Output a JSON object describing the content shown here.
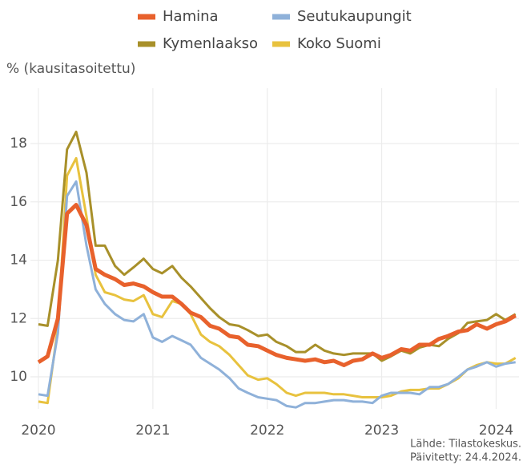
{
  "chart_data": {
    "type": "line",
    "y_label": "% (kausitasoitettu)",
    "source": "Lähde: Tilastokeskus.",
    "updated": "Päivitetty: 24.4.2024.",
    "x": [
      2020,
      2020.08,
      2020.17,
      2020.25,
      2020.33,
      2020.42,
      2020.5,
      2020.58,
      2020.67,
      2020.75,
      2020.83,
      2020.92,
      2021,
      2021.08,
      2021.17,
      2021.25,
      2021.33,
      2021.42,
      2021.5,
      2021.58,
      2021.67,
      2021.75,
      2021.83,
      2021.92,
      2022,
      2022.08,
      2022.17,
      2022.25,
      2022.33,
      2022.42,
      2022.5,
      2022.58,
      2022.67,
      2022.75,
      2022.83,
      2022.92,
      2023,
      2023.08,
      2023.17,
      2023.25,
      2023.33,
      2023.42,
      2023.5,
      2023.58,
      2023.67,
      2023.75,
      2023.83,
      2023.92,
      2024,
      2024.08,
      2024.17
    ],
    "series": [
      {
        "name": "Hamina",
        "color": "#e8612c",
        "values": [
          10.5,
          10.7,
          12.0,
          15.6,
          15.9,
          15.2,
          13.7,
          13.5,
          13.35,
          13.15,
          13.2,
          13.1,
          12.9,
          12.75,
          12.75,
          12.5,
          12.2,
          12.05,
          11.75,
          11.65,
          11.4,
          11.35,
          11.1,
          11.05,
          10.9,
          10.75,
          10.65,
          10.6,
          10.55,
          10.6,
          10.5,
          10.55,
          10.4,
          10.55,
          10.6,
          10.8,
          10.65,
          10.75,
          10.95,
          10.9,
          11.1,
          11.1,
          11.3,
          11.4,
          11.55,
          11.6,
          11.8,
          11.65,
          11.8,
          11.9,
          12.1
        ]
      },
      {
        "name": "Seutukaupungit",
        "color": "#8fb1d9",
        "values": [
          9.4,
          9.35,
          11.5,
          16.2,
          16.7,
          14.5,
          13.0,
          12.5,
          12.15,
          11.95,
          11.9,
          12.15,
          11.35,
          11.2,
          11.4,
          11.25,
          11.1,
          10.65,
          10.45,
          10.25,
          9.95,
          9.6,
          9.45,
          9.3,
          9.25,
          9.2,
          9.0,
          8.95,
          9.1,
          9.1,
          9.15,
          9.2,
          9.2,
          9.15,
          9.15,
          9.1,
          9.35,
          9.45,
          9.45,
          9.45,
          9.4,
          9.65,
          9.65,
          9.75,
          10.0,
          10.25,
          10.35,
          10.5,
          10.35,
          10.45,
          10.5
        ]
      },
      {
        "name": "Kymenlaakso",
        "color": "#a8902a",
        "values": [
          11.8,
          11.75,
          14.0,
          17.8,
          18.4,
          17.0,
          14.5,
          14.5,
          13.8,
          13.5,
          13.75,
          14.05,
          13.7,
          13.55,
          13.8,
          13.4,
          13.1,
          12.7,
          12.35,
          12.05,
          11.8,
          11.75,
          11.6,
          11.4,
          11.45,
          11.2,
          11.05,
          10.85,
          10.85,
          11.1,
          10.9,
          10.8,
          10.75,
          10.8,
          10.8,
          10.8,
          10.55,
          10.7,
          10.9,
          10.8,
          11.0,
          11.1,
          11.05,
          11.3,
          11.5,
          11.85,
          11.9,
          11.95,
          12.15,
          11.95,
          12.15
        ]
      },
      {
        "name": "Koko Suomi",
        "color": "#e8c23e",
        "values": [
          9.15,
          9.1,
          11.7,
          16.9,
          17.5,
          15.5,
          13.5,
          12.9,
          12.8,
          12.65,
          12.6,
          12.8,
          12.15,
          12.05,
          12.6,
          12.5,
          12.15,
          11.45,
          11.2,
          11.05,
          10.75,
          10.4,
          10.05,
          9.9,
          9.95,
          9.75,
          9.45,
          9.35,
          9.45,
          9.45,
          9.45,
          9.4,
          9.4,
          9.35,
          9.3,
          9.3,
          9.3,
          9.35,
          9.5,
          9.55,
          9.55,
          9.6,
          9.6,
          9.75,
          9.95,
          10.25,
          10.4,
          10.5,
          10.45,
          10.45,
          10.65
        ]
      }
    ],
    "xlim": [
      2020,
      2024.2
    ],
    "xticks": [
      2020,
      2021,
      2022,
      2023,
      2024
    ],
    "ylim": [
      8.9,
      19.9
    ],
    "yticks": [
      10,
      12,
      14,
      16,
      18
    ],
    "grid": true,
    "legend": "top"
  }
}
